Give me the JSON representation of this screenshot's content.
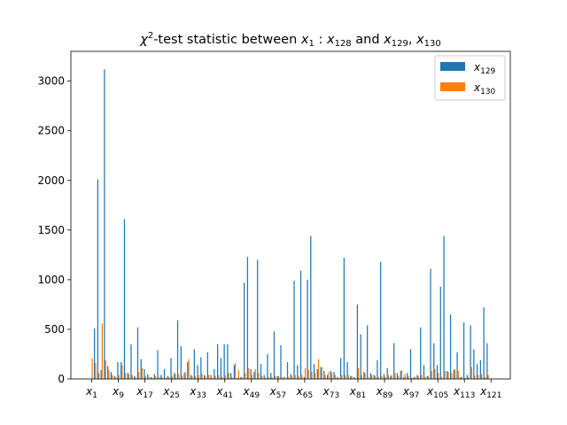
{
  "chart_data": {
    "type": "bar",
    "title": {
      "prefix": "χ",
      "sup": "2",
      "mid": "-test statistic between ",
      "v1": "x",
      "s1": "1",
      "colon": " : ",
      "v2": "x",
      "s2": "128",
      "and": " and ",
      "v3": "x",
      "s3": "129",
      "comma": ", ",
      "v4": "x",
      "s4": "130"
    },
    "xlabel": "",
    "ylabel": "",
    "ylim": [
      0,
      3300
    ],
    "yticks": [
      0,
      500,
      1000,
      1500,
      2000,
      2500,
      3000
    ],
    "xticks": [
      {
        "index": 1,
        "var": "x",
        "sub": "1"
      },
      {
        "index": 9,
        "var": "x",
        "sub": "9"
      },
      {
        "index": 17,
        "var": "x",
        "sub": "17"
      },
      {
        "index": 25,
        "var": "x",
        "sub": "25"
      },
      {
        "index": 33,
        "var": "x",
        "sub": "33"
      },
      {
        "index": 41,
        "var": "x",
        "sub": "41"
      },
      {
        "index": 49,
        "var": "x",
        "sub": "49"
      },
      {
        "index": 57,
        "var": "x",
        "sub": "57"
      },
      {
        "index": 65,
        "var": "x",
        "sub": "65"
      },
      {
        "index": 73,
        "var": "x",
        "sub": "73"
      },
      {
        "index": 81,
        "var": "x",
        "sub": "81"
      },
      {
        "index": 89,
        "var": "x",
        "sub": "89"
      },
      {
        "index": 97,
        "var": "x",
        "sub": "97"
      },
      {
        "index": 105,
        "var": "x",
        "sub": "105"
      },
      {
        "index": 113,
        "var": "x",
        "sub": "113"
      },
      {
        "index": 121,
        "var": "x",
        "sub": "121"
      }
    ],
    "legend_position": "top-right",
    "grid": false,
    "series": [
      {
        "name": {
          "var": "x",
          "sub": "129"
        },
        "color": "#1f77b4",
        "values": [
          0,
          510,
          2010,
          90,
          3120,
          130,
          70,
          30,
          170,
          170,
          1610,
          60,
          350,
          30,
          520,
          200,
          100,
          50,
          20,
          50,
          290,
          40,
          100,
          30,
          210,
          60,
          590,
          330,
          60,
          170,
          40,
          300,
          140,
          220,
          40,
          270,
          40,
          100,
          350,
          210,
          350,
          350,
          60,
          140,
          10,
          20,
          970,
          1230,
          100,
          70,
          1200,
          150,
          40,
          250,
          60,
          480,
          30,
          340,
          20,
          170,
          50,
          990,
          140,
          1090,
          20,
          1000,
          1440,
          150,
          100,
          120,
          80,
          40,
          80,
          70,
          20,
          210,
          1220,
          170,
          30,
          20,
          750,
          450,
          70,
          540,
          60,
          40,
          190,
          1180,
          50,
          110,
          30,
          360,
          60,
          80,
          20,
          60,
          300,
          20,
          40,
          520,
          140,
          30,
          1110,
          360,
          140,
          930,
          1440,
          80,
          650,
          90,
          270,
          20,
          570,
          40,
          540,
          300,
          150,
          190,
          720,
          360
        ]
      },
      {
        "name": {
          "var": "x",
          "sub": "130"
        },
        "color": "#ff7f0e",
        "values": [
          210,
          160,
          60,
          560,
          190,
          90,
          40,
          20,
          40,
          140,
          60,
          50,
          40,
          20,
          70,
          110,
          30,
          20,
          10,
          30,
          20,
          20,
          10,
          20,
          30,
          50,
          50,
          30,
          70,
          200,
          30,
          30,
          40,
          50,
          30,
          40,
          10,
          30,
          40,
          20,
          40,
          60,
          20,
          160,
          90,
          20,
          60,
          110,
          40,
          100,
          60,
          30,
          10,
          20,
          20,
          30,
          30,
          20,
          10,
          20,
          30,
          40,
          30,
          40,
          110,
          90,
          70,
          60,
          200,
          120,
          40,
          70,
          60,
          40,
          10,
          40,
          40,
          40,
          30,
          10,
          110,
          40,
          60,
          20,
          40,
          30,
          20,
          30,
          20,
          40,
          40,
          60,
          30,
          90,
          50,
          30,
          10,
          20,
          30,
          40,
          20,
          30,
          80,
          100,
          60,
          20,
          80,
          70,
          60,
          100,
          80,
          20,
          10,
          20,
          120,
          30,
          40,
          50,
          20,
          40
        ]
      }
    ]
  }
}
